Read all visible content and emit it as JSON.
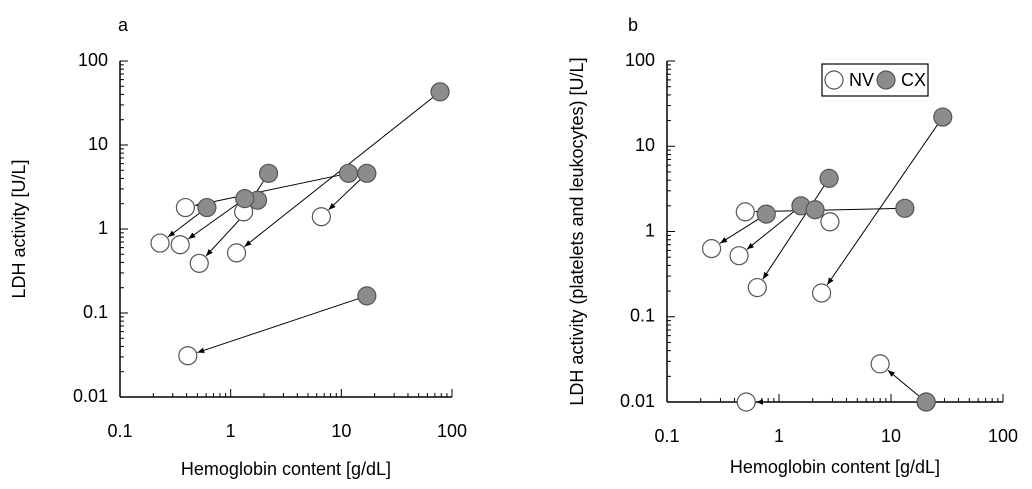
{
  "chart_data": [
    {
      "type": "scatter",
      "panel_label": "a",
      "x_label": "Hemoglobin content [g/dL]",
      "y_label": "LDH activity [U/L]",
      "xscale": "log",
      "yscale": "log",
      "xlim": [
        0.1,
        100
      ],
      "xticks": [
        0.1,
        1,
        10,
        100
      ],
      "ylim": [
        0.01,
        100
      ],
      "yticks": [
        0.01,
        0.1,
        1,
        10,
        100
      ],
      "series": [
        {
          "color": "#ffffff",
          "x": [
            0.39,
            6.6,
            1.31,
            0.52,
            0.35,
            0.23,
            1.13,
            0.41
          ],
          "y": [
            1.8,
            1.4,
            1.6,
            0.39,
            0.65,
            0.68,
            0.52,
            0.031
          ]
        },
        {
          "color": "#8c8c8c",
          "x": [
            11.6,
            17,
            2.2,
            1.75,
            1.34,
            0.61,
            78,
            17
          ],
          "y": [
            4.6,
            4.6,
            4.6,
            2.2,
            2.3,
            1.8,
            43,
            0.16
          ]
        }
      ]
    },
    {
      "type": "scatter",
      "panel_label": "b",
      "x_label": "Hemoglobin content [g/dL]",
      "y_label": "LDH activity (platelets and leukocytes) [U/L]",
      "xscale": "log",
      "yscale": "log",
      "legend": "upper center",
      "xlim": [
        0.1,
        100
      ],
      "xticks": [
        0.1,
        1,
        10,
        100
      ],
      "ylim": [
        0.01,
        100
      ],
      "yticks": [
        0.01,
        0.1,
        1,
        10,
        100
      ],
      "series": [
        {
          "name": "NV",
          "color": "#ffffff",
          "x": [
            2.4,
            0.5,
            0.64,
            0.25,
            0.44,
            2.85,
            8.0,
            0.51
          ],
          "y": [
            0.19,
            1.7,
            0.22,
            0.63,
            0.52,
            1.3,
            0.028,
            0.01
          ]
        },
        {
          "name": "CX",
          "color": "#8c8c8c",
          "x": [
            29,
            13.3,
            2.8,
            0.77,
            1.57,
            2.1,
            20.6,
            20.6
          ],
          "y": [
            22,
            1.87,
            4.2,
            1.6,
            2.0,
            1.8,
            0.01,
            0.01
          ]
        }
      ]
    }
  ]
}
